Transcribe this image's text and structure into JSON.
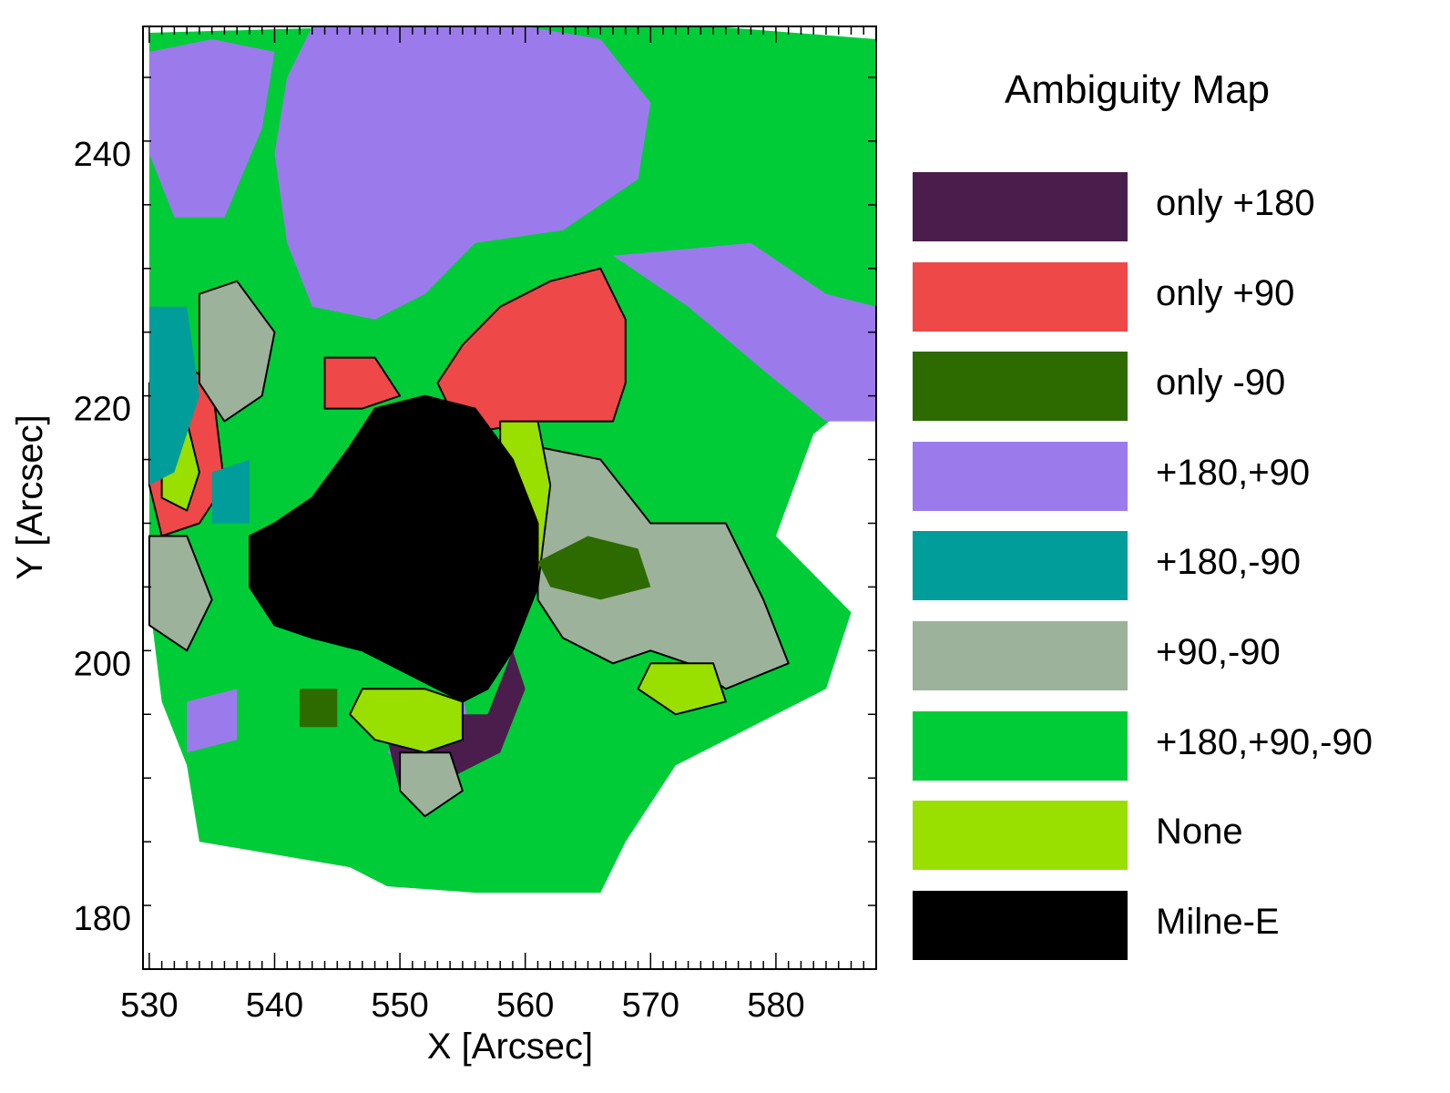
{
  "chart_data": {
    "type": "heatmap",
    "title": "",
    "xlabel": "X [Arcsec]",
    "ylabel": "Y [Arcsec]",
    "xlim": [
      529.5,
      588
    ],
    "ylim": [
      176,
      250
    ],
    "x_ticks": [
      530,
      540,
      550,
      560,
      570,
      580
    ],
    "y_ticks": [
      180,
      200,
      220,
      240
    ],
    "legend": {
      "title": "Ambiguity Map",
      "position": "right",
      "entries": [
        {
          "label": "only +180",
          "color": "#4a1d4d"
        },
        {
          "label": "only +90",
          "color": "#ef4848"
        },
        {
          "label": "only -90",
          "color": "#2d6b00"
        },
        {
          "label": "+180,+90",
          "color": "#9b7beb"
        },
        {
          "label": "+180,-90",
          "color": "#009d9a"
        },
        {
          "label": "+90,-90",
          "color": "#9db29a"
        },
        {
          "label": "+180,+90,-90",
          "color": "#00cc38"
        },
        {
          "label": "None",
          "color": "#99df00"
        },
        {
          "label": "Milne-E",
          "color": "#000000"
        }
      ]
    },
    "regions": [
      {
        "category": "+180,+90,-90",
        "points": [
          [
            530,
            249.5
          ],
          [
            548,
            250
          ],
          [
            575,
            250
          ],
          [
            588,
            249
          ],
          [
            588,
            222
          ],
          [
            583,
            218
          ],
          [
            580,
            210
          ],
          [
            586,
            204
          ],
          [
            584,
            198
          ],
          [
            578,
            195
          ],
          [
            572,
            192
          ],
          [
            568,
            186
          ],
          [
            566,
            182
          ],
          [
            556,
            182
          ],
          [
            549,
            182.5
          ],
          [
            546,
            184
          ],
          [
            534,
            186
          ],
          [
            533,
            192
          ],
          [
            531,
            197
          ],
          [
            530,
            205
          ],
          [
            530,
            225
          ]
        ]
      },
      {
        "category": "+180,+90",
        "points": [
          [
            543,
            250
          ],
          [
            560,
            250
          ],
          [
            566,
            249
          ],
          [
            570,
            244
          ],
          [
            569,
            238
          ],
          [
            563,
            234
          ],
          [
            556,
            233
          ],
          [
            552,
            229
          ],
          [
            548,
            227
          ],
          [
            543,
            228
          ],
          [
            541,
            233
          ],
          [
            540,
            240
          ],
          [
            541,
            246
          ]
        ]
      },
      {
        "category": "+180,+90",
        "points": [
          [
            567,
            232
          ],
          [
            578,
            233
          ],
          [
            584,
            229
          ],
          [
            588,
            228
          ],
          [
            588,
            219
          ],
          [
            584,
            219
          ],
          [
            579,
            223
          ],
          [
            573,
            228
          ]
        ]
      },
      {
        "category": "+180,+90",
        "points": [
          [
            530,
            248
          ],
          [
            535,
            249
          ],
          [
            540,
            248
          ],
          [
            539,
            242
          ],
          [
            536,
            235
          ],
          [
            532,
            235
          ],
          [
            530,
            240
          ]
        ]
      },
      {
        "category": "+180,+90",
        "points": [
          [
            533,
            197
          ],
          [
            537,
            198
          ],
          [
            537,
            194
          ],
          [
            533,
            193
          ]
        ]
      },
      {
        "category": "+180,+90",
        "points": [
          [
            551,
            197
          ],
          [
            555,
            197.5
          ],
          [
            556,
            193
          ],
          [
            552,
            191
          ],
          [
            549,
            193
          ]
        ]
      },
      {
        "category": "+180,+90",
        "points": [
          [
            571,
            206
          ],
          [
            576,
            207
          ],
          [
            577,
            203
          ],
          [
            573,
            201
          ],
          [
            570,
            203
          ]
        ]
      },
      {
        "category": "only +180",
        "points": [
          [
            551,
            197
          ],
          [
            555,
            196
          ],
          [
            557,
            196
          ],
          [
            559,
            201
          ],
          [
            560,
            198
          ],
          [
            558,
            193
          ],
          [
            554,
            191
          ],
          [
            550,
            190
          ],
          [
            549,
            194
          ]
        ]
      },
      {
        "category": "only +90",
        "points": [
          [
            555,
            218
          ],
          [
            561,
            219
          ],
          [
            567,
            219
          ],
          [
            568,
            222
          ],
          [
            568,
            227
          ],
          [
            566,
            231
          ],
          [
            562,
            230
          ],
          [
            558,
            228
          ],
          [
            555,
            225
          ],
          [
            553,
            222
          ]
        ]
      },
      {
        "category": "only +90",
        "points": [
          [
            544,
            224
          ],
          [
            548,
            224
          ],
          [
            550,
            221
          ],
          [
            547,
            220
          ],
          [
            544,
            220
          ]
        ]
      },
      {
        "category": "only +90",
        "points": [
          [
            532,
            224
          ],
          [
            535,
            222
          ],
          [
            536,
            214
          ],
          [
            534,
            211
          ],
          [
            531,
            210
          ],
          [
            530,
            214
          ],
          [
            530,
            222
          ]
        ]
      },
      {
        "category": "+90,-90",
        "points": [
          [
            561,
            217
          ],
          [
            566,
            216
          ],
          [
            570,
            211
          ],
          [
            576,
            211
          ],
          [
            579,
            205
          ],
          [
            581,
            200
          ],
          [
            576,
            198
          ],
          [
            573,
            200
          ],
          [
            570,
            201
          ],
          [
            567,
            200
          ],
          [
            563,
            202
          ],
          [
            561,
            205
          ]
        ]
      },
      {
        "category": "+90,-90",
        "points": [
          [
            534,
            229
          ],
          [
            537,
            230
          ],
          [
            540,
            226
          ],
          [
            539,
            221
          ],
          [
            536,
            219
          ],
          [
            534,
            222
          ]
        ]
      },
      {
        "category": "+90,-90",
        "points": [
          [
            530,
            210
          ],
          [
            533,
            210
          ],
          [
            535,
            205
          ],
          [
            533,
            201
          ],
          [
            530,
            203
          ]
        ]
      },
      {
        "category": "+90,-90",
        "points": [
          [
            550,
            193
          ],
          [
            554,
            193
          ],
          [
            555,
            190
          ],
          [
            552,
            188
          ],
          [
            550,
            190
          ]
        ]
      },
      {
        "category": "None",
        "points": [
          [
            547,
            198
          ],
          [
            552,
            198
          ],
          [
            555,
            197
          ],
          [
            555,
            194
          ],
          [
            552,
            193
          ],
          [
            548,
            194
          ],
          [
            546,
            196
          ]
        ]
      },
      {
        "category": "None",
        "points": [
          [
            558,
            219
          ],
          [
            561,
            219
          ],
          [
            562,
            214
          ],
          [
            561,
            206
          ],
          [
            560,
            208
          ],
          [
            558,
            214
          ]
        ]
      },
      {
        "category": "None",
        "points": [
          [
            531,
            219
          ],
          [
            533,
            219
          ],
          [
            534,
            215
          ],
          [
            533,
            212
          ],
          [
            531,
            213
          ]
        ]
      },
      {
        "category": "None",
        "points": [
          [
            570,
            200
          ],
          [
            575,
            200
          ],
          [
            576,
            197
          ],
          [
            572,
            196
          ],
          [
            569,
            198
          ]
        ]
      },
      {
        "category": "only -90",
        "points": [
          [
            561,
            208
          ],
          [
            565,
            210
          ],
          [
            569,
            209
          ],
          [
            570,
            206
          ],
          [
            566,
            205
          ],
          [
            562,
            206
          ]
        ]
      },
      {
        "category": "only -90",
        "points": [
          [
            542,
            198
          ],
          [
            545,
            198
          ],
          [
            545,
            195
          ],
          [
            542,
            195
          ]
        ]
      },
      {
        "category": "+180,-90",
        "points": [
          [
            530,
            228
          ],
          [
            533,
            228
          ],
          [
            534,
            221
          ],
          [
            532,
            215
          ],
          [
            530,
            214
          ]
        ]
      },
      {
        "category": "+180,-90",
        "points": [
          [
            535,
            215
          ],
          [
            538,
            216
          ],
          [
            538,
            211
          ],
          [
            535,
            211
          ]
        ]
      },
      {
        "category": "Milne-E",
        "points": [
          [
            555,
            197
          ],
          [
            557,
            198
          ],
          [
            559,
            201
          ],
          [
            561,
            206
          ],
          [
            561,
            211
          ],
          [
            559,
            216
          ],
          [
            556,
            220
          ],
          [
            552,
            221
          ],
          [
            548,
            220
          ],
          [
            546,
            217
          ],
          [
            543,
            213
          ],
          [
            540,
            211
          ],
          [
            538,
            210
          ],
          [
            538,
            206
          ],
          [
            540,
            203
          ],
          [
            543,
            202
          ],
          [
            547,
            201
          ],
          [
            551,
            199
          ],
          [
            553,
            198
          ]
        ]
      }
    ]
  }
}
